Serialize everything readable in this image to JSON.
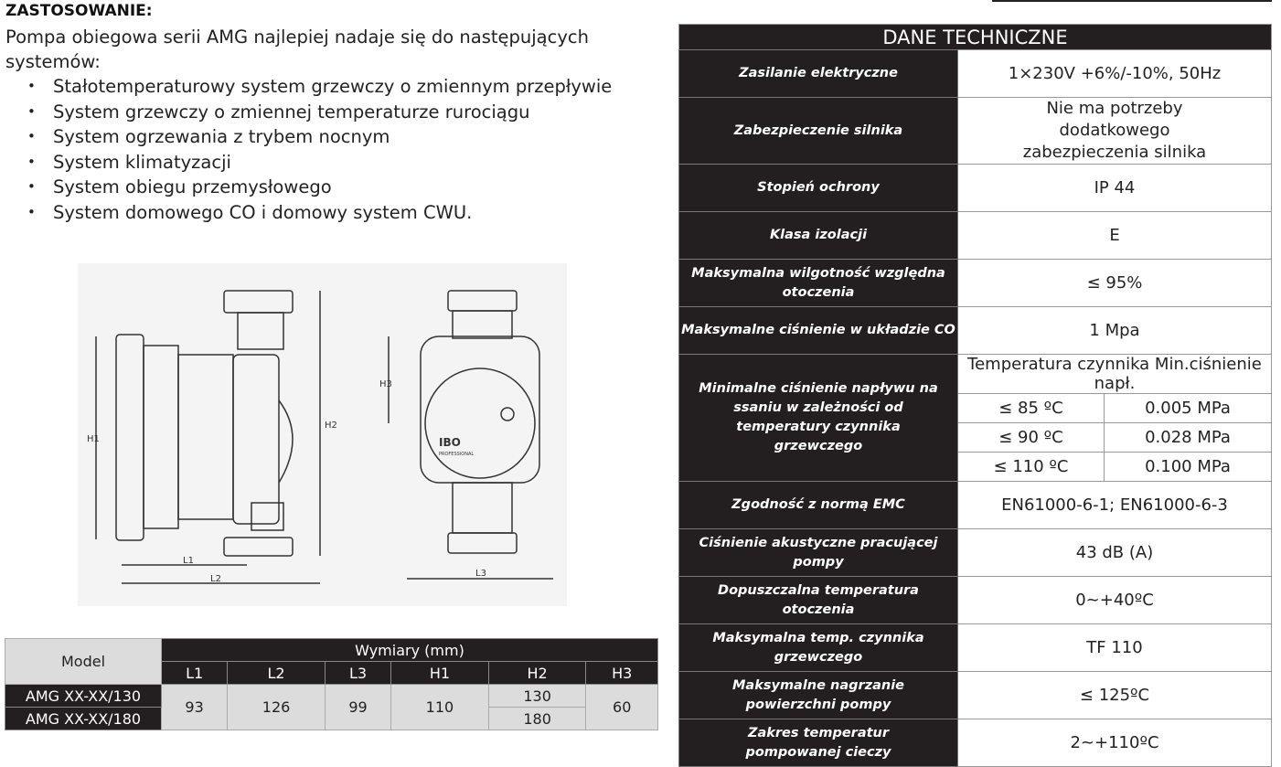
{
  "title": "ZASTOSOWANIE:",
  "intro": "Pompa obiegowa serii AMG najlepiej nadaje się do następujących systemów:",
  "bullets": [
    "Stałotemperaturowy system grzewczy o zmiennym przepływie",
    "System grzewczy o zmiennej temperaturze rurociągu",
    "System ogrzewania z trybem nocnym",
    "System klimatyzacji",
    "System obiegu przemysłowego",
    "System domowego CO i domowy system CWU."
  ],
  "drawing": {
    "labels": {
      "h1": "H1",
      "h2": "H2",
      "h3": "H3",
      "l1": "L1",
      "l2": "L2",
      "l3": "L3"
    },
    "logo": "IBO",
    "logo_sub": "PROFESSIONAL"
  },
  "dimensions": {
    "model_header": "Model",
    "group_header": "Wymiary (mm)",
    "columns": [
      "L1",
      "L2",
      "L3",
      "H1",
      "H2",
      "H3"
    ],
    "models": [
      "AMG XX-XX/130",
      "AMG XX-XX/180"
    ],
    "l1": "93",
    "l2": "126",
    "l3": "99",
    "h1": "110",
    "h2": [
      "130",
      "180"
    ],
    "h3": "60"
  },
  "tech": {
    "header": "DANE TECHNICZNE",
    "rows": [
      {
        "label": "Zasilanie elektryczne",
        "value": "1×230V +6%/-10%, 50Hz"
      },
      {
        "label": "Zabezpieczenie silnika",
        "value": "Nie ma potrzeby dodatkowego zabezpieczenia silnika"
      },
      {
        "label": "Stopień ochrony",
        "value": "IP 44"
      },
      {
        "label": "Klasa izolacji",
        "value": "E"
      },
      {
        "label": "Maksymalna wilgotność względna otoczenia",
        "value": "≤ 95%"
      },
      {
        "label": "Maksymalne ciśnienie w układzie CO",
        "value": "1 Mpa"
      }
    ],
    "min_pressure": {
      "label": "Minimalne ciśnienie napływu na ssaniu w zależności od temperatury czynnika grzewczego",
      "subheader": "Temperatura czynnika Min.ciśnienie napł.",
      "rows": [
        {
          "temp": "≤ 85 ºC",
          "pressure": "0.005 MPa"
        },
        {
          "temp": "≤ 90 ºC",
          "pressure": "0.028 MPa"
        },
        {
          "temp": "≤ 110 ºC",
          "pressure": "0.100 MPa"
        }
      ]
    },
    "rows2": [
      {
        "label": "Zgodność z normą EMC",
        "value": "EN61000-6-1; EN61000-6-3"
      },
      {
        "label": "Ciśnienie akustyczne pracującej pompy",
        "value": "43 dB (A)"
      },
      {
        "label": "Dopuszczalna temperatura otoczenia",
        "value": "0~+40ºC"
      },
      {
        "label": "Maksymalna temp. czynnika grzewczego",
        "value": "TF 110"
      },
      {
        "label": "Maksymalne nagrzanie powierzchni pompy",
        "value": "≤ 125ºC"
      },
      {
        "label": "Zakres temperatur pompowanej cieczy",
        "value": "2~+110ºC"
      }
    ]
  }
}
